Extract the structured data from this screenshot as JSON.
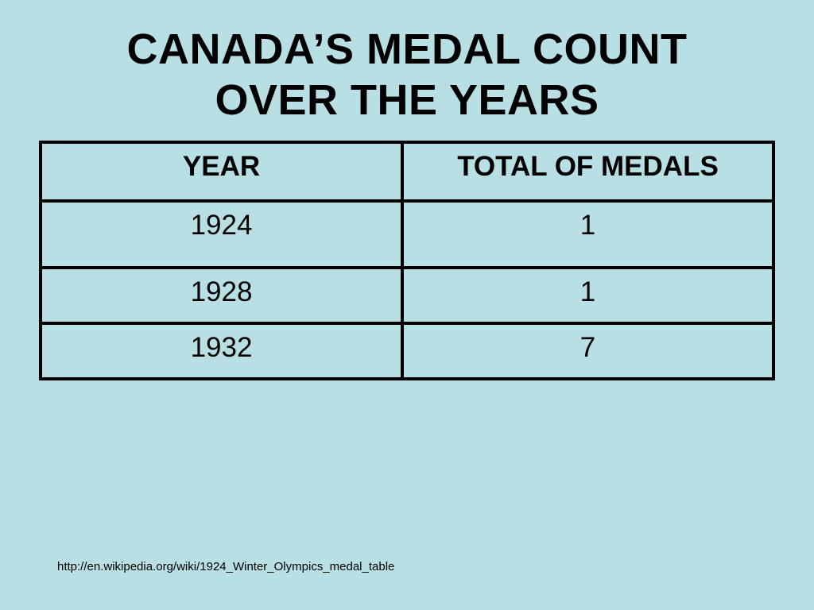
{
  "title": {
    "line1": "CANADA’S MEDAL COUNT",
    "line2": "OVER THE YEARS"
  },
  "table": {
    "headers": [
      "YEAR",
      "TOTAL OF MEDALS"
    ],
    "rows": [
      [
        "1924",
        "1"
      ],
      [
        "1928",
        "1"
      ],
      [
        "1932",
        "7"
      ]
    ]
  },
  "source": "http://en.wikipedia.org/wiki/1924_Winter_Olympics_medal_table",
  "colors": {
    "background": "#b8dfe3",
    "text": "#000000",
    "border": "#000000"
  }
}
